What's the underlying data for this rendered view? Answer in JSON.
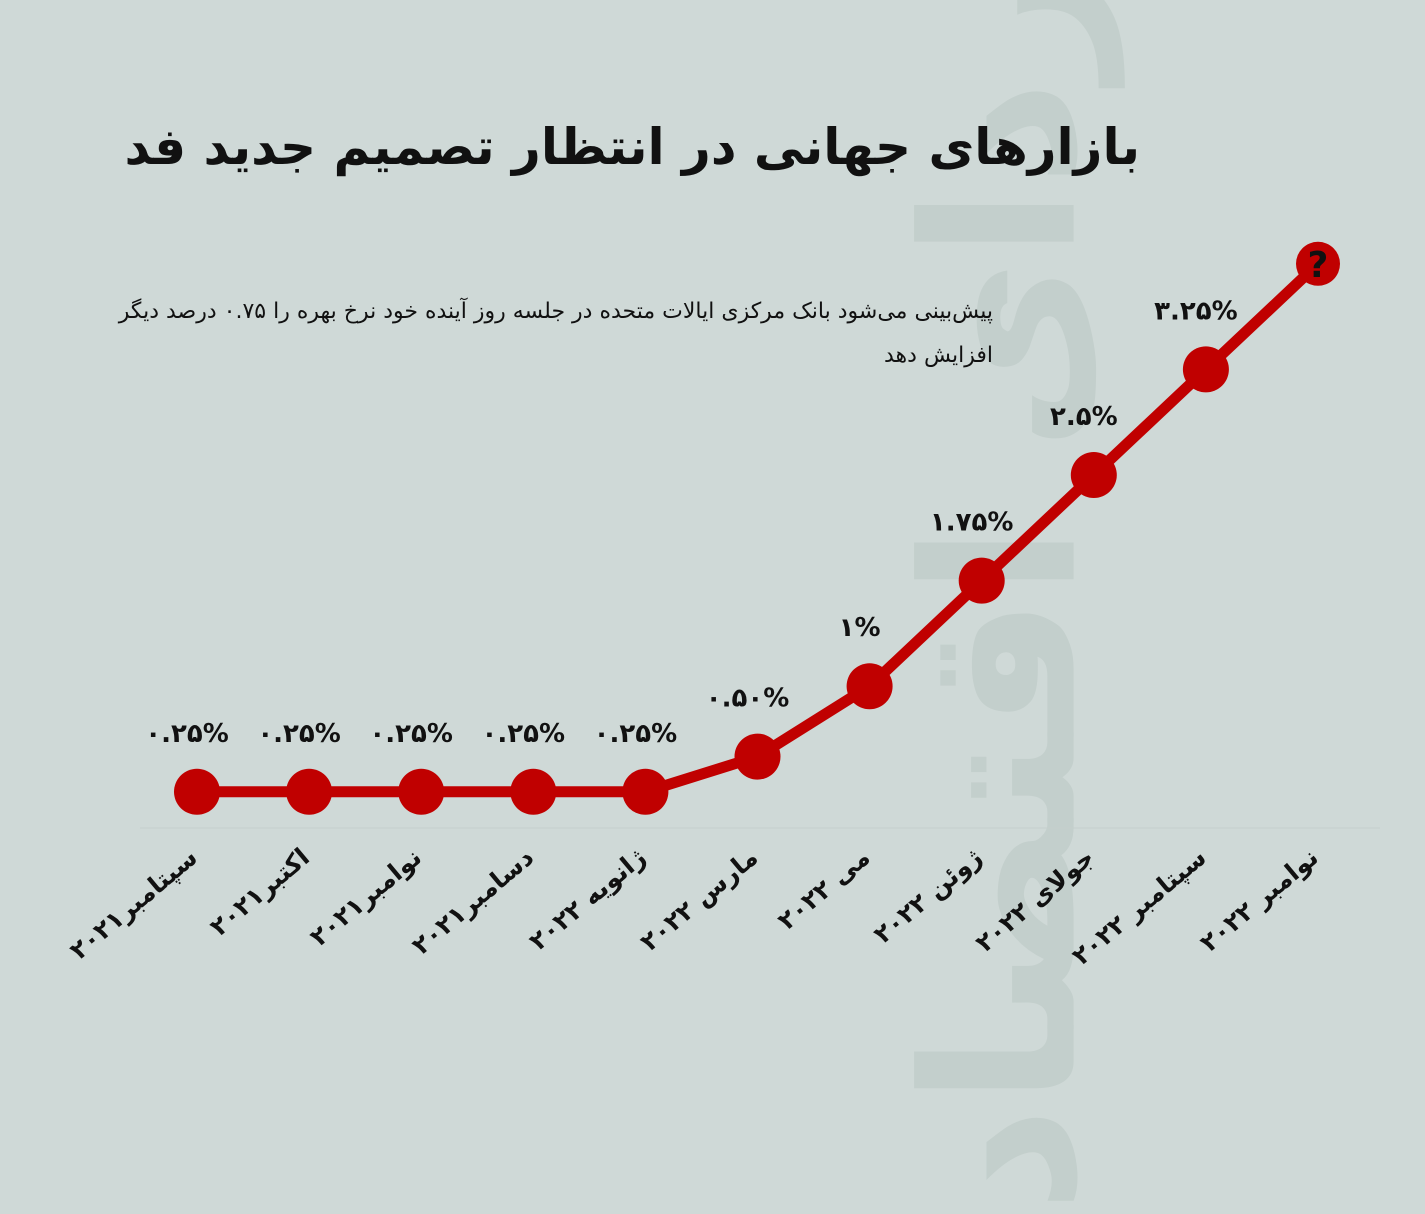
{
  "title": "بازارهای جهانی در انتظار تصمیم جدید فد",
  "subtitle": "پیش‌بینی می‌شود بانک مرکزی ایالات متحده در جلسه روز آینده خود نرخ بهره را ۰.۷۵ درصد دیگر افزایش دهد",
  "watermark": "فردای اقتصاد",
  "colors": {
    "line": "#c00000",
    "background": "#cfd9d7",
    "text": "#111111"
  },
  "chart_data": {
    "type": "line",
    "title": "بازارهای جهانی در انتظار تصمیم جدید فد",
    "xlabel": "",
    "ylabel": "",
    "grid": false,
    "categories": [
      "سپتامبر۲۰۲۱",
      "اکتبر۲۰۲۱",
      "نوامبر۲۰۲۱",
      "دسامبر۲۰۲۱",
      "ژانویه ۲۰۲۲",
      "مارس ۲۰۲۲",
      "می ۲۰۲۲",
      "ژوئن ۲۰۲۲",
      "جولای ۲۰۲۲",
      "سپتامبر ۲۰۲۲",
      "نوامبر ۲۰۲۲"
    ],
    "values": [
      0.25,
      0.25,
      0.25,
      0.25,
      0.25,
      0.5,
      1,
      1.75,
      2.5,
      3.25,
      4.0
    ],
    "data_labels": [
      "۰.۲۵%",
      "۰.۲۵%",
      "۰.۲۵%",
      "۰.۲۵%",
      "۰.۲۵%",
      "۰.۵۰%",
      "۱%",
      "۱.۷۵%",
      "۲.۵%",
      "۳.۲۵%",
      "?"
    ],
    "ylim": [
      0,
      4.0
    ]
  }
}
